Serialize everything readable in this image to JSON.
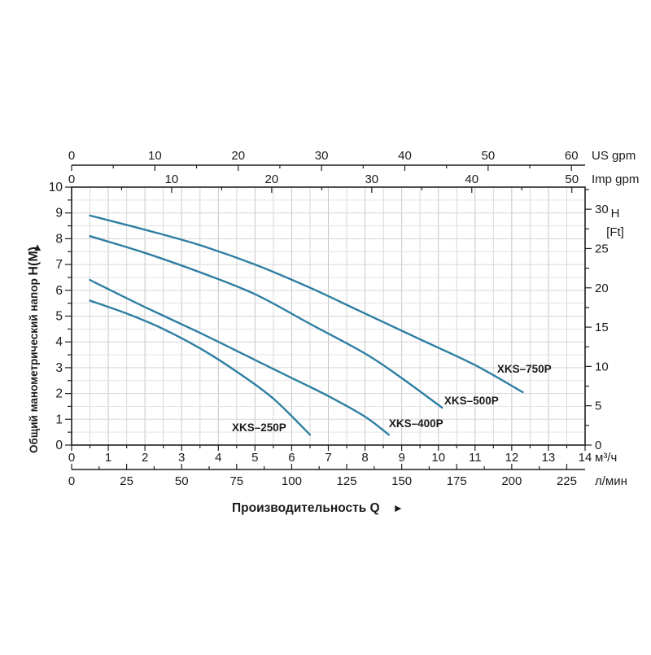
{
  "figure": {
    "bg": "#ffffff",
    "curve_color": "#2e7fa3",
    "axis_color": "#1f1f1f",
    "grid_minor_v": "#d7d7d7",
    "grid_major_v": "#c6c6c6",
    "grid_minor_h": "#e3e3e3",
    "grid_major_h": "#d5d5d5",
    "text_color": "#1b1b1b"
  },
  "chart_data": {
    "type": "line",
    "x_title": "Производительность Q",
    "x_title_arrow": "►",
    "x_m3h": {
      "unit": "м³/ч",
      "min": 0,
      "max": 14,
      "major": 1,
      "minor": 0.5
    },
    "x_lpm": {
      "unit": "л/мин",
      "min": 0,
      "max": 225,
      "major": 25,
      "minor": 12.5,
      "per_m3h": 16.6667
    },
    "x_usgpm": {
      "unit": "US gpm",
      "min": 0,
      "max": 60,
      "major": 10,
      "minor": 5,
      "per_m3h": 4.4029
    },
    "x_impgpm": {
      "unit": "Imp gpm",
      "min": 0,
      "max": 50,
      "major": 10,
      "minor": 5,
      "per_m3h": 3.6661
    },
    "y_m": {
      "label": "Общий манометрический напор",
      "label_strong": "H(M)",
      "arrow": "▲",
      "min": 0,
      "max": 10,
      "major": 1,
      "minor": 0.5
    },
    "y_ft": {
      "label_line1": "H",
      "label_line2": "[Ft]",
      "min": 0,
      "max": 30,
      "major": 5,
      "minor": 2.5,
      "per_m": 3.2808
    },
    "series": [
      {
        "name": "XKS–250P",
        "label_at": [
          4.37,
          0.54
        ],
        "points": [
          [
            0.5,
            5.6
          ],
          [
            1.5,
            5.1
          ],
          [
            2.5,
            4.5
          ],
          [
            3.5,
            3.75
          ],
          [
            4.5,
            2.85
          ],
          [
            5.5,
            1.8
          ],
          [
            6.5,
            0.4
          ]
        ]
      },
      {
        "name": "XKS–400P",
        "label_at": [
          8.65,
          0.69
        ],
        "points": [
          [
            0.5,
            6.4
          ],
          [
            2,
            5.35
          ],
          [
            3.5,
            4.35
          ],
          [
            5,
            3.3
          ],
          [
            6,
            2.6
          ],
          [
            7,
            1.9
          ],
          [
            8,
            1.1
          ],
          [
            8.65,
            0.4
          ]
        ]
      },
      {
        "name": "XKS–500P",
        "label_at": [
          10.16,
          1.58
        ],
        "points": [
          [
            0.5,
            8.1
          ],
          [
            2,
            7.45
          ],
          [
            3.5,
            6.7
          ],
          [
            5,
            5.85
          ],
          [
            6.5,
            4.7
          ],
          [
            8,
            3.55
          ],
          [
            9,
            2.6
          ],
          [
            10.1,
            1.45
          ]
        ]
      },
      {
        "name": "XKS–750P",
        "label_at": [
          11.6,
          2.81
        ],
        "points": [
          [
            0.5,
            8.9
          ],
          [
            2,
            8.35
          ],
          [
            3.5,
            7.75
          ],
          [
            5,
            7.0
          ],
          [
            6.5,
            6.1
          ],
          [
            8,
            5.1
          ],
          [
            9.5,
            4.1
          ],
          [
            11,
            3.1
          ],
          [
            12.3,
            2.05
          ]
        ]
      }
    ]
  }
}
